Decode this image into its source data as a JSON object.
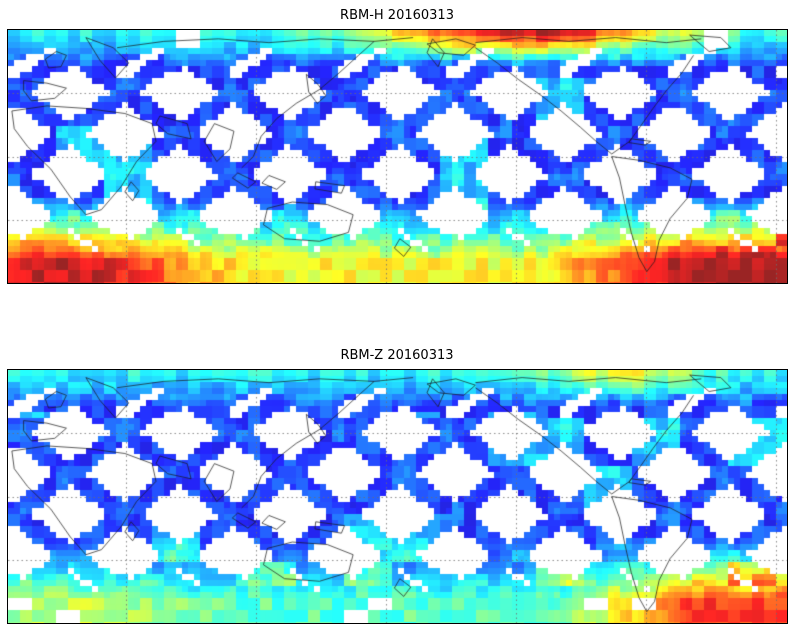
{
  "chart_data": [
    {
      "type": "heatmap",
      "title": "RBM-H 20160313",
      "colormap": "jet",
      "map": "global equirectangular map, Pacific-centered, approx latitude -70 to 70",
      "coverage": "criss-crossing polar-orbit satellite swaths forming a diamond lattice with white gaps at low/mid latitudes; near-full coverage along the north and south edges",
      "grid": {
        "style": "dotted",
        "meridians": 6,
        "parallels": 3
      },
      "value_summary": [
        {
          "key": "midlat",
          "region": "tropical and mid-latitude swaths",
          "level": 0.16,
          "color": "royal blue"
        },
        {
          "key": "north_edge",
          "region": "northern edge band",
          "level": 0.33,
          "color": "cyan-blue"
        },
        {
          "key": "north_hotspot",
          "region": "northern edge over North Pacific / NW North America",
          "level": 0.92,
          "color": "red",
          "x_frac": 0.66,
          "width_frac": 0.19
        },
        {
          "key": "south_band",
          "region": "southern high-latitude band",
          "level": 0.58,
          "color": "yellow-orange"
        },
        {
          "key": "south_hotspot_left",
          "region": "south-western corner (south Atlantic / Indian Ocean)",
          "level": 0.9,
          "color": "red",
          "x_frac": 0.07,
          "width_frac": 0.16
        },
        {
          "key": "south_hotspot_right",
          "region": "south-eastern sector near southern South America",
          "level": 0.95,
          "color": "dark red",
          "x_frac": 0.88,
          "width_frac": 0.2
        }
      ]
    },
    {
      "type": "heatmap",
      "title": "RBM-Z 20160313",
      "colormap": "jet",
      "map": "global equirectangular map, Pacific-centered, approx latitude -70 to 70",
      "coverage": "same swath lattice as RBM-H panel; overall cooler values, warm patch only at south-east corner and a mild green patch on the northern edge",
      "grid": {
        "style": "dotted",
        "meridians": 6,
        "parallels": 3
      },
      "value_summary": [
        {
          "key": "midlat",
          "region": "tropical and mid-latitude swaths",
          "level": 0.16,
          "color": "royal blue"
        },
        {
          "key": "north_edge",
          "region": "northern edge band",
          "level": 0.33,
          "color": "cyan-blue"
        },
        {
          "key": "north_hotspot",
          "region": "northern edge near NE Pacific",
          "level": 0.58,
          "color": "green-yellow",
          "x_frac": 0.79,
          "width_frac": 0.1
        },
        {
          "key": "south_band",
          "region": "southern high-latitude band",
          "level": 0.4,
          "color": "cyan-green"
        },
        {
          "key": "south_hotspot_left",
          "region": "south-western corner",
          "level": 0.52,
          "color": "green-cyan",
          "x_frac": 0.08,
          "width_frac": 0.14
        },
        {
          "key": "south_hotspot_right",
          "region": "south-eastern corner near southern South America",
          "level": 0.8,
          "color": "orange",
          "x_frac": 0.88,
          "width_frac": 0.18
        }
      ]
    }
  ]
}
